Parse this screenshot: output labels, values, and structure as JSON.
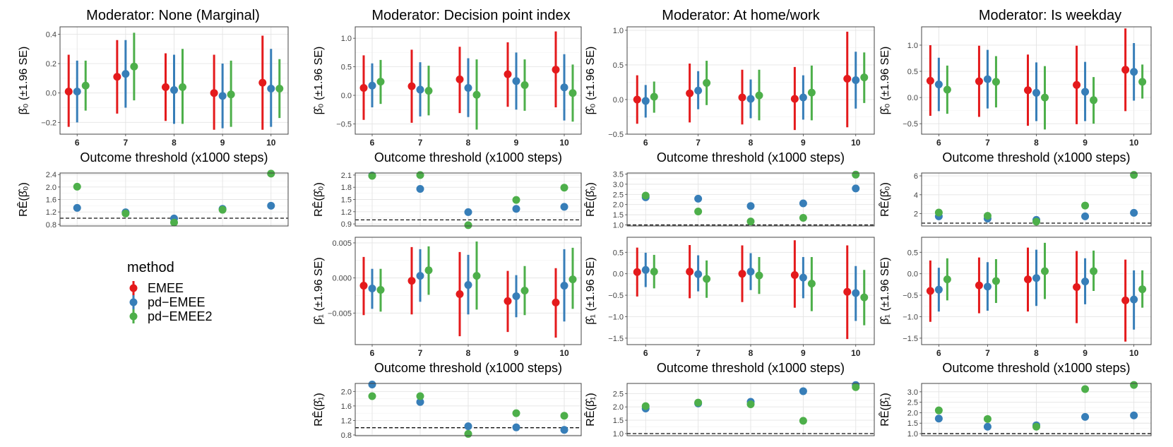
{
  "colors": {
    "EMEE": "#E41A1C",
    "pd-EMEE": "#377EB8",
    "pd-EMEE2": "#4DAF4A"
  },
  "legend": {
    "title": "method",
    "items": [
      "EMEE",
      "pd−EMEE",
      "pd−EMEE2"
    ]
  },
  "axis_labels": {
    "x": "Outcome threshold (x1000 steps)",
    "beta0": "β̂₀ (±1.96 SE)",
    "beta1": "β̂₁ (±1.96 SE)",
    "re0": "RÊ(β̂₀)",
    "re1": "RÊ(β̂₁)"
  },
  "columns": [
    {
      "title": "Moderator: None (Marginal)"
    },
    {
      "title": "Moderator: Decision point index"
    },
    {
      "title": "Moderator: At home/work"
    },
    {
      "title": "Moderator: Is weekday"
    }
  ],
  "chart_data": [
    {
      "type": "errorbar",
      "col": 0,
      "row": "beta0",
      "xlabel": "Outcome threshold (x1000 steps)",
      "categories": [
        "6",
        "7",
        "8",
        "9",
        "10"
      ],
      "ylim": [
        -0.28,
        0.45
      ],
      "yticks": [
        -0.2,
        0.0,
        0.2,
        0.4
      ],
      "ytick_labels": [
        "−0.2",
        "0.0",
        "0.2",
        "0.4"
      ],
      "series": [
        {
          "name": "EMEE",
          "est": [
            0.01,
            0.11,
            0.04,
            0.0,
            0.07
          ],
          "lo": [
            -0.23,
            -0.14,
            -0.19,
            -0.25,
            -0.25
          ],
          "hi": [
            0.26,
            0.36,
            0.27,
            0.26,
            0.39
          ]
        },
        {
          "name": "pd-EMEE",
          "est": [
            0.01,
            0.13,
            0.02,
            -0.02,
            0.03
          ],
          "lo": [
            -0.2,
            -0.1,
            -0.21,
            -0.24,
            -0.23
          ],
          "hi": [
            0.22,
            0.36,
            0.26,
            0.2,
            0.3
          ]
        },
        {
          "name": "pd-EMEE2",
          "est": [
            0.05,
            0.18,
            0.04,
            -0.01,
            0.03
          ],
          "lo": [
            -0.12,
            -0.05,
            -0.21,
            -0.23,
            -0.17
          ],
          "hi": [
            0.22,
            0.41,
            0.3,
            0.22,
            0.23
          ]
        }
      ]
    },
    {
      "type": "scatter",
      "col": 0,
      "row": "re0",
      "categories": [
        "6",
        "7",
        "8",
        "9",
        "10"
      ],
      "ylim": [
        0.75,
        2.45
      ],
      "yticks": [
        0.8,
        1.2,
        1.6,
        2.0,
        2.4
      ],
      "ytick_labels": [
        "0.8",
        "1.2",
        "1.6",
        "2.0",
        "2.4"
      ],
      "ref": 1.0,
      "series": [
        {
          "name": "pd-EMEE",
          "values": [
            1.33,
            1.19,
            0.99,
            1.3,
            1.4
          ]
        },
        {
          "name": "pd-EMEE2",
          "values": [
            2.01,
            1.15,
            0.86,
            1.27,
            2.43
          ]
        }
      ]
    },
    {
      "type": "errorbar",
      "col": 1,
      "row": "beta0",
      "xlabel": "Outcome threshold (x1000 steps)",
      "categories": [
        "6",
        "7",
        "8",
        "9",
        "10"
      ],
      "ylim": [
        -0.68,
        1.2
      ],
      "yticks": [
        -0.5,
        0.0,
        0.5,
        1.0
      ],
      "ytick_labels": [
        "−0.5",
        "0.0",
        "0.5",
        "1.0"
      ],
      "series": [
        {
          "name": "EMEE",
          "est": [
            0.13,
            0.16,
            0.28,
            0.37,
            0.45
          ],
          "lo": [
            -0.43,
            -0.48,
            -0.31,
            -0.2,
            -0.21
          ],
          "hi": [
            0.7,
            0.8,
            0.85,
            0.93,
            1.12
          ]
        },
        {
          "name": "pd-EMEE",
          "est": [
            0.17,
            0.1,
            0.13,
            0.25,
            0.14
          ],
          "lo": [
            -0.21,
            -0.37,
            -0.38,
            -0.25,
            -0.44
          ],
          "hi": [
            0.56,
            0.58,
            0.65,
            0.75,
            0.72
          ]
        },
        {
          "name": "pd-EMEE2",
          "est": [
            0.24,
            0.08,
            0.01,
            0.18,
            0.04
          ],
          "lo": [
            -0.15,
            -0.35,
            -0.6,
            -0.27,
            -0.46
          ],
          "hi": [
            0.62,
            0.52,
            0.63,
            0.63,
            0.54
          ]
        }
      ]
    },
    {
      "type": "scatter",
      "col": 1,
      "row": "re0",
      "categories": [
        "6",
        "7",
        "8",
        "9",
        "10"
      ],
      "ylim": [
        0.85,
        2.15
      ],
      "yticks": [
        0.9,
        1.2,
        1.5,
        1.8,
        2.1
      ],
      "ytick_labels": [
        "0.9",
        "1.2",
        "1.5",
        "1.8",
        "2.1"
      ],
      "ref": 1.0,
      "series": [
        {
          "name": "pd-EMEE",
          "values": [
            2.09,
            1.76,
            1.19,
            1.27,
            1.32
          ]
        },
        {
          "name": "pd-EMEE2",
          "values": [
            2.08,
            2.1,
            0.87,
            1.49,
            1.79
          ]
        }
      ]
    },
    {
      "type": "errorbar",
      "col": 1,
      "row": "beta1",
      "xlabel": "Outcome threshold (x1000 steps)",
      "categories": [
        "6",
        "7",
        "8",
        "9",
        "10"
      ],
      "ylim": [
        -0.0095,
        0.0058
      ],
      "yticks": [
        -0.005,
        0.0,
        0.005
      ],
      "ytick_labels": [
        "−0.005",
        "0.000",
        "0.005"
      ],
      "series": [
        {
          "name": "EMEE",
          "est": [
            -0.0011,
            -0.0004,
            -0.0023,
            -0.0033,
            -0.0035
          ],
          "lo": [
            -0.0053,
            -0.0052,
            -0.0083,
            -0.0077,
            -0.0085
          ],
          "hi": [
            0.003,
            0.0044,
            0.0037,
            0.001,
            0.0014
          ]
        },
        {
          "name": "pd-EMEE",
          "est": [
            -0.0015,
            0.0003,
            -0.001,
            -0.0026,
            -0.0011
          ],
          "lo": [
            -0.0044,
            -0.0034,
            -0.0052,
            -0.0056,
            -0.0062
          ],
          "hi": [
            0.0013,
            0.0041,
            0.0033,
            0.0004,
            0.0041
          ]
        },
        {
          "name": "pd-EMEE2",
          "est": [
            -0.0017,
            0.0011,
            0.0003,
            -0.0018,
            -0.0002
          ],
          "lo": [
            -0.0048,
            -0.0024,
            -0.0045,
            -0.0053,
            -0.0044
          ],
          "hi": [
            0.0013,
            0.0045,
            0.0052,
            0.0017,
            0.0043
          ]
        }
      ]
    },
    {
      "type": "scatter",
      "col": 1,
      "row": "re1",
      "categories": [
        "6",
        "7",
        "8",
        "9",
        "10"
      ],
      "ylim": [
        0.78,
        2.22
      ],
      "yticks": [
        0.8,
        1.2,
        1.6,
        2.0
      ],
      "ytick_labels": [
        "0.8",
        "1.2",
        "1.6",
        "2.0"
      ],
      "ref": 1.0,
      "series": [
        {
          "name": "pd-EMEE",
          "values": [
            2.19,
            1.71,
            1.04,
            1.01,
            0.94
          ]
        },
        {
          "name": "pd-EMEE2",
          "values": [
            1.87,
            1.87,
            0.83,
            1.4,
            1.33
          ]
        }
      ]
    },
    {
      "type": "errorbar",
      "col": 2,
      "row": "beta0",
      "xlabel": "Outcome threshold (x1000 steps)",
      "categories": [
        "6",
        "7",
        "8",
        "9",
        "10"
      ],
      "ylim": [
        -0.5,
        1.05
      ],
      "yticks": [
        -0.5,
        0.0,
        0.5,
        1.0
      ],
      "ytick_labels": [
        "−0.5",
        "0.0",
        "0.5",
        "1.0"
      ],
      "series": [
        {
          "name": "EMEE",
          "est": [
            0.0,
            0.09,
            0.03,
            0.01,
            0.3
          ],
          "lo": [
            -0.35,
            -0.33,
            -0.36,
            -0.44,
            -0.4
          ],
          "hi": [
            0.35,
            0.52,
            0.43,
            0.47,
            0.98
          ]
        },
        {
          "name": "pd-EMEE",
          "est": [
            -0.02,
            0.13,
            0.01,
            0.03,
            0.28
          ],
          "lo": [
            -0.26,
            -0.14,
            -0.27,
            -0.29,
            -0.13
          ],
          "hi": [
            0.21,
            0.41,
            0.29,
            0.35,
            0.69
          ]
        },
        {
          "name": "pd-EMEE2",
          "est": [
            0.04,
            0.24,
            0.06,
            0.1,
            0.32
          ],
          "lo": [
            -0.19,
            -0.08,
            -0.3,
            -0.3,
            -0.05
          ],
          "hi": [
            0.26,
            0.56,
            0.43,
            0.49,
            0.68
          ]
        }
      ]
    },
    {
      "type": "scatter",
      "col": 2,
      "row": "re0",
      "categories": [
        "6",
        "7",
        "8",
        "9",
        "10"
      ],
      "ylim": [
        0.95,
        3.55
      ],
      "yticks": [
        1.0,
        1.5,
        2.0,
        2.5,
        3.0,
        3.5
      ],
      "ytick_labels": [
        "1.0",
        "1.5",
        "2.0",
        "2.5",
        "3.0",
        "3.5"
      ],
      "ref": 1.0,
      "series": [
        {
          "name": "pd-EMEE",
          "values": [
            2.36,
            2.29,
            1.93,
            2.06,
            2.79
          ]
        },
        {
          "name": "pd-EMEE2",
          "values": [
            2.44,
            1.66,
            1.17,
            1.35,
            3.47
          ]
        }
      ]
    },
    {
      "type": "errorbar",
      "col": 2,
      "row": "beta1",
      "xlabel": "Outcome threshold (x1000 steps)",
      "categories": [
        "6",
        "7",
        "8",
        "9",
        "10"
      ],
      "ylim": [
        -1.65,
        0.85
      ],
      "yticks": [
        -1.5,
        -1.0,
        -0.5,
        0.0,
        0.5
      ],
      "ytick_labels": [
        "−1.5",
        "−1.0",
        "−0.5",
        "0.0",
        "0.5"
      ],
      "series": [
        {
          "name": "EMEE",
          "est": [
            0.04,
            0.05,
            0.0,
            -0.03,
            -0.42
          ],
          "lo": [
            -0.53,
            -0.57,
            -0.66,
            -0.79,
            -1.52
          ],
          "hi": [
            0.61,
            0.67,
            0.66,
            0.78,
            0.66
          ]
        },
        {
          "name": "pd-EMEE",
          "est": [
            0.09,
            -0.01,
            0.05,
            -0.09,
            -0.45
          ],
          "lo": [
            -0.31,
            -0.41,
            -0.38,
            -0.57,
            -1.1
          ],
          "hi": [
            0.49,
            0.43,
            0.48,
            0.39,
            0.18
          ]
        },
        {
          "name": "pd-EMEE2",
          "est": [
            0.05,
            -0.12,
            -0.04,
            -0.23,
            -0.55
          ],
          "lo": [
            -0.34,
            -0.56,
            -0.47,
            -0.87,
            -1.2
          ],
          "hi": [
            0.44,
            0.31,
            0.39,
            0.39,
            0.09
          ]
        }
      ]
    },
    {
      "type": "scatter",
      "col": 2,
      "row": "re1",
      "categories": [
        "6",
        "7",
        "8",
        "9",
        "10"
      ],
      "ylim": [
        0.92,
        2.88
      ],
      "yticks": [
        1.0,
        1.5,
        2.0,
        2.5
      ],
      "ytick_labels": [
        "1.0",
        "1.5",
        "2.0",
        "2.5"
      ],
      "ref": 1.0,
      "series": [
        {
          "name": "pd-EMEE",
          "values": [
            1.94,
            2.13,
            2.19,
            2.59,
            2.82
          ]
        },
        {
          "name": "pd-EMEE2",
          "values": [
            2.03,
            2.16,
            2.1,
            1.48,
            2.74
          ]
        }
      ]
    },
    {
      "type": "errorbar",
      "col": 3,
      "row": "beta0",
      "xlabel": "Outcome threshold (x1000 steps)",
      "categories": [
        "6",
        "7",
        "8",
        "9",
        "10"
      ],
      "ylim": [
        -0.7,
        1.35
      ],
      "yticks": [
        -0.5,
        0.0,
        0.5,
        1.0
      ],
      "ytick_labels": [
        "−0.5",
        "0.0",
        "0.5",
        "1.0"
      ],
      "series": [
        {
          "name": "EMEE",
          "est": [
            0.32,
            0.31,
            0.14,
            0.24,
            0.53
          ],
          "lo": [
            -0.35,
            -0.37,
            -0.54,
            -0.51,
            -0.26
          ],
          "hi": [
            1.0,
            0.99,
            0.82,
            0.99,
            1.32
          ]
        },
        {
          "name": "pd-EMEE",
          "est": [
            0.25,
            0.35,
            0.09,
            0.11,
            0.49
          ],
          "lo": [
            -0.26,
            -0.21,
            -0.45,
            -0.45,
            -0.06
          ],
          "hi": [
            0.76,
            0.91,
            0.67,
            0.68,
            1.04
          ]
        },
        {
          "name": "pd-EMEE2",
          "est": [
            0.15,
            0.3,
            0.0,
            -0.05,
            0.3
          ],
          "lo": [
            -0.31,
            -0.19,
            -0.61,
            -0.5,
            -0.02
          ],
          "hi": [
            0.61,
            0.79,
            0.6,
            0.39,
            0.63
          ]
        }
      ]
    },
    {
      "type": "scatter",
      "col": 3,
      "row": "re0",
      "categories": [
        "6",
        "7",
        "8",
        "9",
        "10"
      ],
      "ylim": [
        0.7,
        6.3
      ],
      "yticks": [
        2,
        4,
        6
      ],
      "ytick_labels": [
        "2",
        "4",
        "6"
      ],
      "ref": 1.0,
      "series": [
        {
          "name": "pd-EMEE",
          "values": [
            1.72,
            1.48,
            1.34,
            1.72,
            2.09
          ]
        },
        {
          "name": "pd-EMEE2",
          "values": [
            2.12,
            1.77,
            1.16,
            2.86,
            6.1
          ]
        }
      ]
    },
    {
      "type": "errorbar",
      "col": 3,
      "row": "beta1",
      "xlabel": "Outcome threshold (x1000 steps)",
      "categories": [
        "6",
        "7",
        "8",
        "9",
        "10"
      ],
      "ylim": [
        -1.65,
        0.85
      ],
      "yticks": [
        -1.5,
        -1.0,
        -0.5,
        0.0,
        0.5
      ],
      "ytick_labels": [
        "−1.5",
        "−1.0",
        "−0.5",
        "0.0",
        "0.5"
      ],
      "series": [
        {
          "name": "EMEE",
          "est": [
            -0.4,
            -0.27,
            -0.13,
            -0.31,
            -0.62
          ],
          "lo": [
            -1.12,
            -0.92,
            -0.88,
            -1.15,
            -1.58
          ],
          "hi": [
            0.31,
            0.38,
            0.61,
            0.53,
            0.33
          ]
        },
        {
          "name": "pd-EMEE",
          "est": [
            -0.37,
            -0.3,
            -0.1,
            -0.18,
            -0.6
          ],
          "lo": [
            -0.88,
            -0.86,
            -0.75,
            -0.71,
            -1.3
          ],
          "hi": [
            0.14,
            0.27,
            0.56,
            0.36,
            0.08
          ]
        },
        {
          "name": "pd-EMEE2",
          "est": [
            -0.13,
            -0.17,
            0.06,
            0.06,
            -0.36
          ],
          "lo": [
            -0.62,
            -0.68,
            -0.59,
            -0.4,
            -0.79
          ],
          "hi": [
            0.36,
            0.34,
            0.72,
            0.54,
            0.08
          ]
        }
      ]
    },
    {
      "type": "scatter",
      "col": 3,
      "row": "re1",
      "categories": [
        "6",
        "7",
        "8",
        "9",
        "10"
      ],
      "ylim": [
        0.9,
        3.4
      ],
      "yticks": [
        1.0,
        1.5,
        2.0,
        2.5,
        3.0
      ],
      "ytick_labels": [
        "1.0",
        "1.5",
        "2.0",
        "2.5",
        "3.0"
      ],
      "ref": 1.0,
      "series": [
        {
          "name": "pd-EMEE",
          "values": [
            1.72,
            1.33,
            1.4,
            1.8,
            1.87
          ]
        },
        {
          "name": "pd-EMEE2",
          "values": [
            2.11,
            1.7,
            1.33,
            3.13,
            3.33
          ]
        }
      ]
    }
  ]
}
